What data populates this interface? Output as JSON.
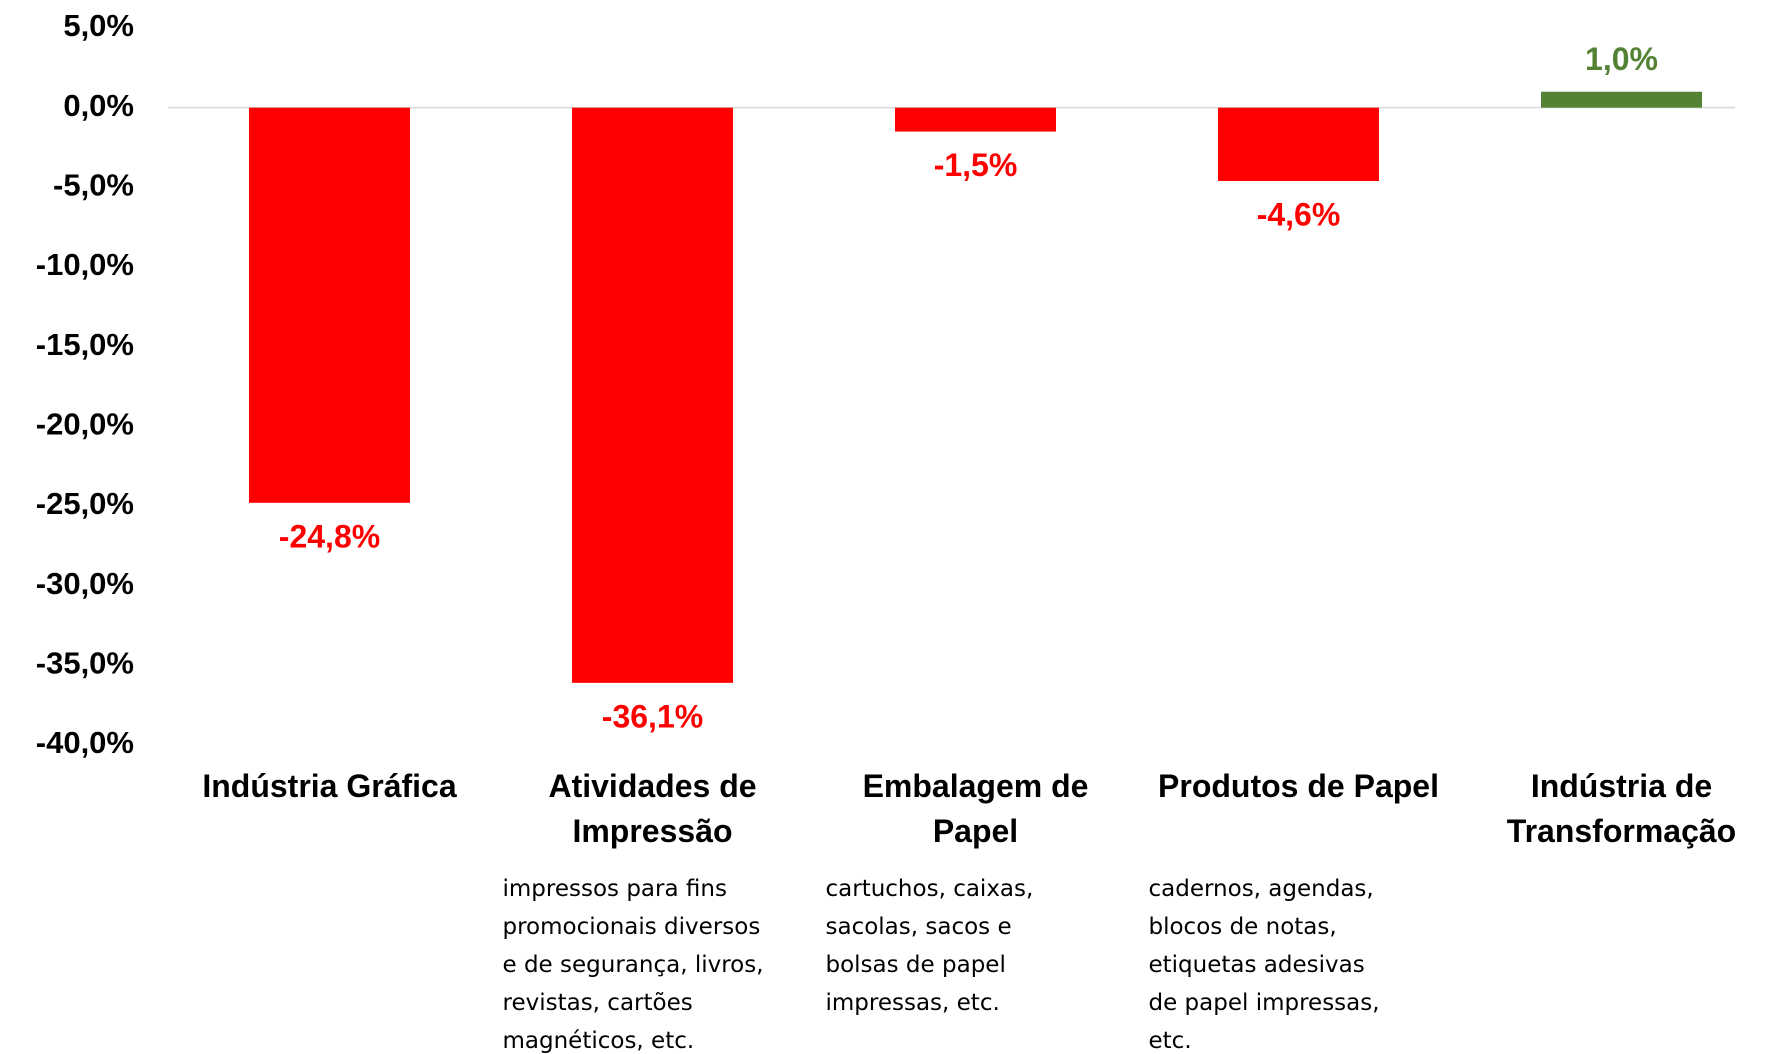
{
  "chart_data": {
    "type": "bar",
    "categories": [
      "Indústria Gráfica",
      "Atividades de Impressão",
      "Embalagem de Papel",
      "Produtos de Papel",
      "Indústria de Transformação"
    ],
    "values": [
      -24.8,
      -36.1,
      -1.5,
      -4.6,
      1.0
    ],
    "value_labels": [
      "-24,8%",
      "-36,1%",
      "-1,5%",
      "-4,6%",
      "1,0%"
    ],
    "colors": [
      "#ff0000",
      "#ff0000",
      "#ff0000",
      "#ff0000",
      "#548235"
    ],
    "descriptions": [
      null,
      "impressos para fins\npromocionais diversos\ne de segurança, livros,\nrevistas, cartões\nmagnéticos, etc.",
      "cartuchos, caixas,\nsacolas, sacos e\nbolsas de papel\nimpressas, etc.",
      "cadernos, agendas,\nblocos de notas,\netiquetas adesivas\nde papel impressas,\netc.",
      null
    ],
    "ylim": [
      -40,
      5
    ],
    "yticks": [
      {
        "value": 5,
        "label": "5,0%"
      },
      {
        "value": 0,
        "label": "0,0%"
      },
      {
        "value": -5,
        "label": "-5,0%"
      },
      {
        "value": -10,
        "label": "-10,0%"
      },
      {
        "value": -15,
        "label": "-15,0%"
      },
      {
        "value": -20,
        "label": "-20,0%"
      },
      {
        "value": -25,
        "label": "-25,0%"
      },
      {
        "value": -30,
        "label": "-30,0%"
      },
      {
        "value": -35,
        "label": "-35,0%"
      },
      {
        "value": -40,
        "label": "-40,0%"
      }
    ],
    "grid": false
  }
}
